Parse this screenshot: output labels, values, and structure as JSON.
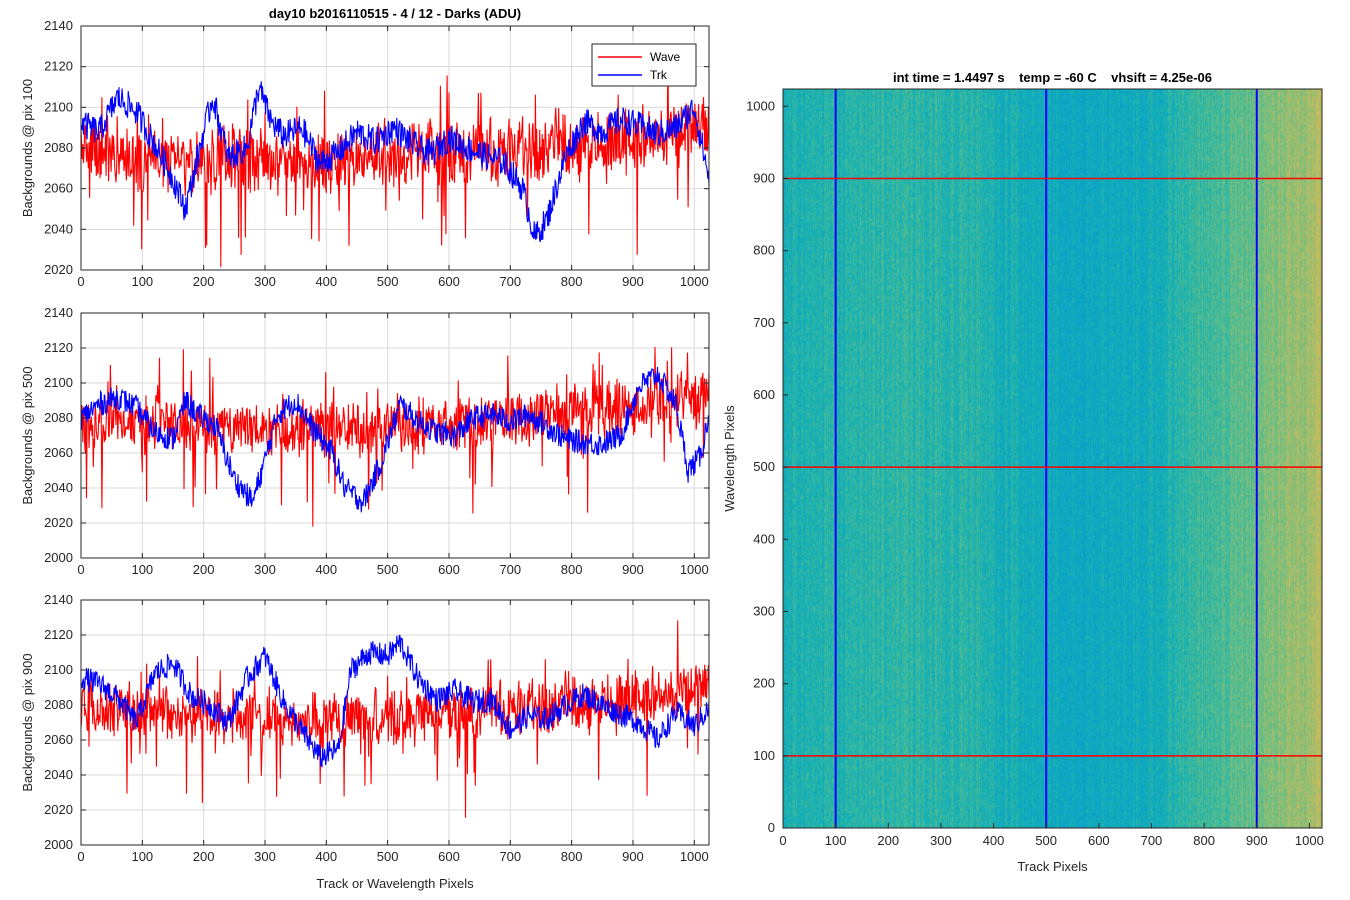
{
  "chart_data": [
    {
      "type": "line",
      "title": "day10 b2016110515 - 4 / 12 - Darks (ADU)",
      "xlabel": "",
      "ylabel": "Backgrounds @ pix 100",
      "xlim": [
        0,
        1024
      ],
      "ylim": [
        2020,
        2140
      ],
      "xticks": [
        0,
        100,
        200,
        300,
        400,
        500,
        600,
        700,
        800,
        900,
        1000
      ],
      "yticks": [
        2020,
        2040,
        2060,
        2080,
        2100,
        2120,
        2140
      ],
      "grid": true,
      "legend": "top-right",
      "series": [
        {
          "name": "Wave",
          "color": "#ff0000",
          "mean": 2077,
          "x": [
            0,
            50,
            100,
            150,
            200,
            250,
            300,
            350,
            400,
            450,
            500,
            550,
            600,
            650,
            700,
            750,
            800,
            850,
            900,
            950,
            1000,
            1024
          ],
          "values": [
            2078,
            2075,
            2074,
            2072,
            2073,
            2075,
            2074,
            2073,
            2072,
            2074,
            2075,
            2077,
            2078,
            2078,
            2079,
            2080,
            2082,
            2083,
            2084,
            2086,
            2088,
            2090
          ]
        },
        {
          "name": "Trk",
          "color": "#0000ff",
          "x": [
            0,
            30,
            60,
            90,
            120,
            150,
            170,
            180,
            200,
            215,
            240,
            270,
            290,
            310,
            330,
            360,
            390,
            420,
            450,
            480,
            510,
            540,
            570,
            600,
            630,
            660,
            690,
            720,
            740,
            760,
            790,
            820,
            850,
            880,
            910,
            940,
            970,
            1000,
            1024
          ],
          "values": [
            2092,
            2088,
            2105,
            2098,
            2082,
            2065,
            2050,
            2062,
            2088,
            2105,
            2075,
            2080,
            2110,
            2093,
            2086,
            2090,
            2072,
            2078,
            2088,
            2083,
            2090,
            2082,
            2077,
            2085,
            2080,
            2076,
            2073,
            2060,
            2036,
            2045,
            2076,
            2093,
            2088,
            2094,
            2091,
            2087,
            2090,
            2100,
            2065
          ]
        }
      ]
    },
    {
      "type": "line",
      "title": "",
      "xlabel": "",
      "ylabel": "Backgrounds @ pix 500",
      "xlim": [
        0,
        1024
      ],
      "ylim": [
        2000,
        2140
      ],
      "xticks": [
        0,
        100,
        200,
        300,
        400,
        500,
        600,
        700,
        800,
        900,
        1000
      ],
      "yticks": [
        2000,
        2020,
        2040,
        2060,
        2080,
        2100,
        2120,
        2140
      ],
      "grid": true,
      "series": [
        {
          "name": "Wave",
          "color": "#ff0000",
          "mean": 2077,
          "x": [
            0,
            100,
            200,
            300,
            400,
            500,
            600,
            700,
            800,
            900,
            1000,
            1024
          ],
          "values": [
            2078,
            2077,
            2075,
            2074,
            2073,
            2074,
            2077,
            2080,
            2083,
            2086,
            2092,
            2094
          ]
        },
        {
          "name": "Trk",
          "color": "#0000ff",
          "x": [
            0,
            30,
            60,
            90,
            120,
            150,
            170,
            190,
            220,
            250,
            280,
            300,
            320,
            350,
            380,
            410,
            430,
            460,
            490,
            520,
            550,
            580,
            610,
            640,
            670,
            700,
            730,
            760,
            790,
            820,
            850,
            880,
            910,
            940,
            970,
            990,
            1010,
            1024
          ],
          "values": [
            2080,
            2088,
            2092,
            2086,
            2072,
            2068,
            2090,
            2082,
            2075,
            2045,
            2032,
            2056,
            2082,
            2090,
            2073,
            2060,
            2040,
            2032,
            2055,
            2088,
            2078,
            2072,
            2070,
            2080,
            2082,
            2078,
            2082,
            2075,
            2068,
            2066,
            2065,
            2070,
            2098,
            2105,
            2088,
            2050,
            2058,
            2082
          ]
        }
      ]
    },
    {
      "type": "line",
      "title": "",
      "xlabel": "Track or Wavelength Pixels",
      "ylabel": "Backgrounds @ pix 900",
      "xlim": [
        0,
        1024
      ],
      "ylim": [
        2000,
        2140
      ],
      "xticks": [
        0,
        100,
        200,
        300,
        400,
        500,
        600,
        700,
        800,
        900,
        1000
      ],
      "yticks": [
        2000,
        2020,
        2040,
        2060,
        2080,
        2100,
        2120,
        2140
      ],
      "grid": true,
      "series": [
        {
          "name": "Wave",
          "color": "#ff0000",
          "mean": 2076,
          "x": [
            0,
            100,
            200,
            300,
            400,
            500,
            600,
            700,
            800,
            900,
            1000,
            1024
          ],
          "values": [
            2078,
            2076,
            2074,
            2073,
            2072,
            2073,
            2075,
            2078,
            2081,
            2084,
            2088,
            2090
          ]
        },
        {
          "name": "Trk",
          "color": "#0000ff",
          "x": [
            0,
            30,
            60,
            90,
            120,
            150,
            180,
            210,
            240,
            270,
            300,
            330,
            360,
            390,
            420,
            440,
            470,
            500,
            520,
            550,
            580,
            610,
            640,
            670,
            700,
            730,
            760,
            790,
            820,
            850,
            880,
            910,
            940,
            970,
            1000,
            1024
          ],
          "values": [
            2096,
            2092,
            2084,
            2070,
            2098,
            2104,
            2085,
            2080,
            2070,
            2095,
            2108,
            2082,
            2065,
            2050,
            2055,
            2100,
            2110,
            2108,
            2116,
            2095,
            2083,
            2088,
            2082,
            2083,
            2066,
            2074,
            2072,
            2080,
            2086,
            2080,
            2075,
            2070,
            2060,
            2076,
            2068,
            2078
          ]
        }
      ]
    },
    {
      "type": "heatmap",
      "title": "int time = 1.4497 s    temp = -60 C    vhsift = 4.25e-06",
      "xlabel": "Track Pixels",
      "ylabel": "Wavelength Pixels",
      "xlim": [
        0,
        1024
      ],
      "ylim": [
        0,
        1024
      ],
      "xticks": [
        0,
        100,
        200,
        300,
        400,
        500,
        600,
        700,
        800,
        900,
        1000
      ],
      "yticks": [
        0,
        100,
        200,
        300,
        400,
        500,
        600,
        700,
        800,
        900,
        1000
      ],
      "colormap": "parula",
      "column_levels": [
        0.45,
        0.5,
        0.52,
        0.5,
        0.42,
        0.36,
        0.4,
        0.55,
        0.7,
        0.85
      ],
      "vertical_lines": {
        "x": [
          100,
          500,
          900
        ],
        "color": "#0000ff"
      },
      "horizontal_lines": {
        "y": [
          100,
          500,
          900
        ],
        "color": "#ff0000"
      }
    }
  ]
}
